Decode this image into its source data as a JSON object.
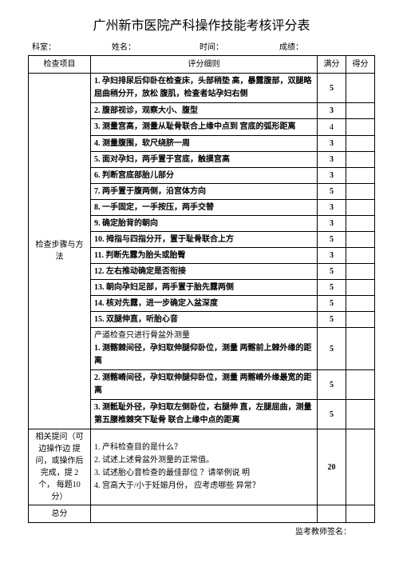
{
  "title": "广州新市医院产科操作技能考核评分表",
  "header": {
    "dept": "科室：",
    "name": "姓名：",
    "time": "时间：",
    "score": "成绩："
  },
  "columns": {
    "item": "检查项目",
    "detail": "评分细则",
    "full": "满分",
    "got": "得分"
  },
  "section1_label": "检查步骤与方法",
  "rows": [
    {
      "detail": "1. 孕妇排尿后仰卧在检查床，头部稍垫 高，暴露腹部，双腿略屈曲稍分开，放松 腹肌，检查者站孕妇右侧",
      "full": "5"
    },
    {
      "detail": "2. 腹部视诊，观察大小、腹型",
      "full": "3"
    },
    {
      "detail": "3. 测量宫高，测量从耻骨联合上缘中点到 宫底的弧形距离",
      "full": "4"
    },
    {
      "detail": "4. 测量腹围，软尺绕脐一周",
      "full": "3"
    },
    {
      "detail": "5. 面对孕妇，两手置于宫底，触摸宫高",
      "full": "3"
    },
    {
      "detail": "6. 判断宫底部胎儿部分",
      "full": "3"
    },
    {
      "detail": "7. 两手置于腹两侧，沿宫体方向",
      "full": "5"
    },
    {
      "detail": "8. 一手固定，一手按压，两手交替",
      "full": "3"
    },
    {
      "detail": "9. 确定胎背的朝向",
      "full": "3"
    },
    {
      "detail": "10. 拇指与四指分开，置于耻骨联合上方",
      "full": "5"
    },
    {
      "detail": "11. 判断先露为胎头或胎臀",
      "full": "3"
    },
    {
      "detail": "12. 左右推动确定是否衔接",
      "full": "5"
    },
    {
      "detail": "13. 朝向孕妇足部，两手置于胎先露两侧",
      "full": "5"
    },
    {
      "detail": "14. 核对先露，进一步确定入盆深度",
      "full": "5"
    },
    {
      "detail": "15. 双腿伸直，听胎心音",
      "full": "5"
    }
  ],
  "section2_intro": "产道检查只进行骨盆外测量",
  "section2_rows": [
    {
      "detail": "1. 测髂棘间径，孕妇取伸腿仰卧位，测量 两髂前上棘外缘的距离",
      "full": "5"
    },
    {
      "detail": "2. 测髂嵴间径，孕妇取伸腿仰卧位，测量 两髂嵴外缘最宽的距离",
      "full": "5"
    },
    {
      "detail": "3. 测骶耻外径，孕妇取左侧卧位，右腿伸 直，左腿屈曲，测量第五腰椎棘突下耻骨 联合上缘中点的距离",
      "full": "5"
    }
  ],
  "section3_label": "相关提问（可边操作边 提问，或操作后 完成，提 2 个， 每题10 分）",
  "section3_detail": "1. 产科检查目的是什么？\n2. 试述上述骨盆外测量的正常值。\n3. 试述胎心音检查的最佳部位 ？请举例说 明\n4. 宫高大于/小于妊娠月份， 应考虑哪些 异常？",
  "section3_full": "20",
  "total_label": "总分",
  "signature": "监考教师签名："
}
